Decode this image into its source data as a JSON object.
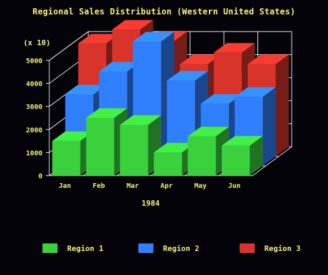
{
  "chart_data": {
    "type": "bar",
    "title": "Regional Sales Distribution  (Western United States)",
    "unit_label": "(x 10)",
    "xlabel": "1984",
    "ylabel": "",
    "categories": [
      "Jan",
      "Feb",
      "Mar",
      "Apr",
      "May",
      "Jun"
    ],
    "y_ticks": [
      "0",
      "1000",
      "2000",
      "3000",
      "4000",
      "5000"
    ],
    "ylim": [
      0,
      5000
    ],
    "grid": true,
    "legend_position": "bottom",
    "series": [
      {
        "name": "Region 1",
        "color": "#3ad13c",
        "values": [
          1500,
          2500,
          2200,
          1000,
          1700,
          1300
        ]
      },
      {
        "name": "Region 2",
        "color": "#2f7fff",
        "values": [
          3100,
          4100,
          5400,
          3700,
          2700,
          3000
        ]
      },
      {
        "name": "Region 3",
        "color": "#d8342a",
        "values": [
          4900,
          5500,
          5000,
          4000,
          4500,
          4000
        ]
      }
    ]
  }
}
